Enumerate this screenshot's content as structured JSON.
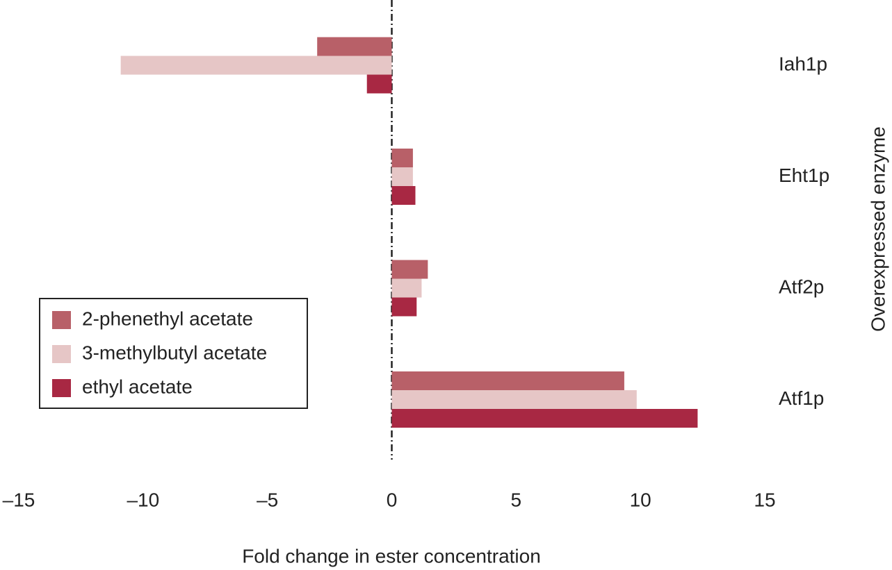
{
  "chart_data": {
    "type": "barh",
    "xlabel": "Fold change in ester concentration",
    "ylabel": "Overexpressed enzyme",
    "categories": [
      "Iah1p",
      "Eht1p",
      "Atf2p",
      "Atf1p"
    ],
    "series": [
      {
        "name": "2-phenethyl acetate",
        "color": "#b86068",
        "values": [
          -3.0,
          0.85,
          1.45,
          9.35
        ]
      },
      {
        "name": "3-methylbutyl acetate",
        "color": "#e6c6c6",
        "values": [
          -10.9,
          0.85,
          1.2,
          9.85
        ]
      },
      {
        "name": "ethyl acetate",
        "color": "#a82843",
        "values": [
          -1.0,
          0.95,
          1.0,
          12.3
        ]
      }
    ],
    "xlim": [
      -15,
      15
    ],
    "xticks": [
      {
        "value": -15,
        "label": "–15"
      },
      {
        "value": -10,
        "label": "–10"
      },
      {
        "value": -5,
        "label": "–5"
      },
      0,
      5,
      10,
      15
    ],
    "legend": "lower left"
  }
}
